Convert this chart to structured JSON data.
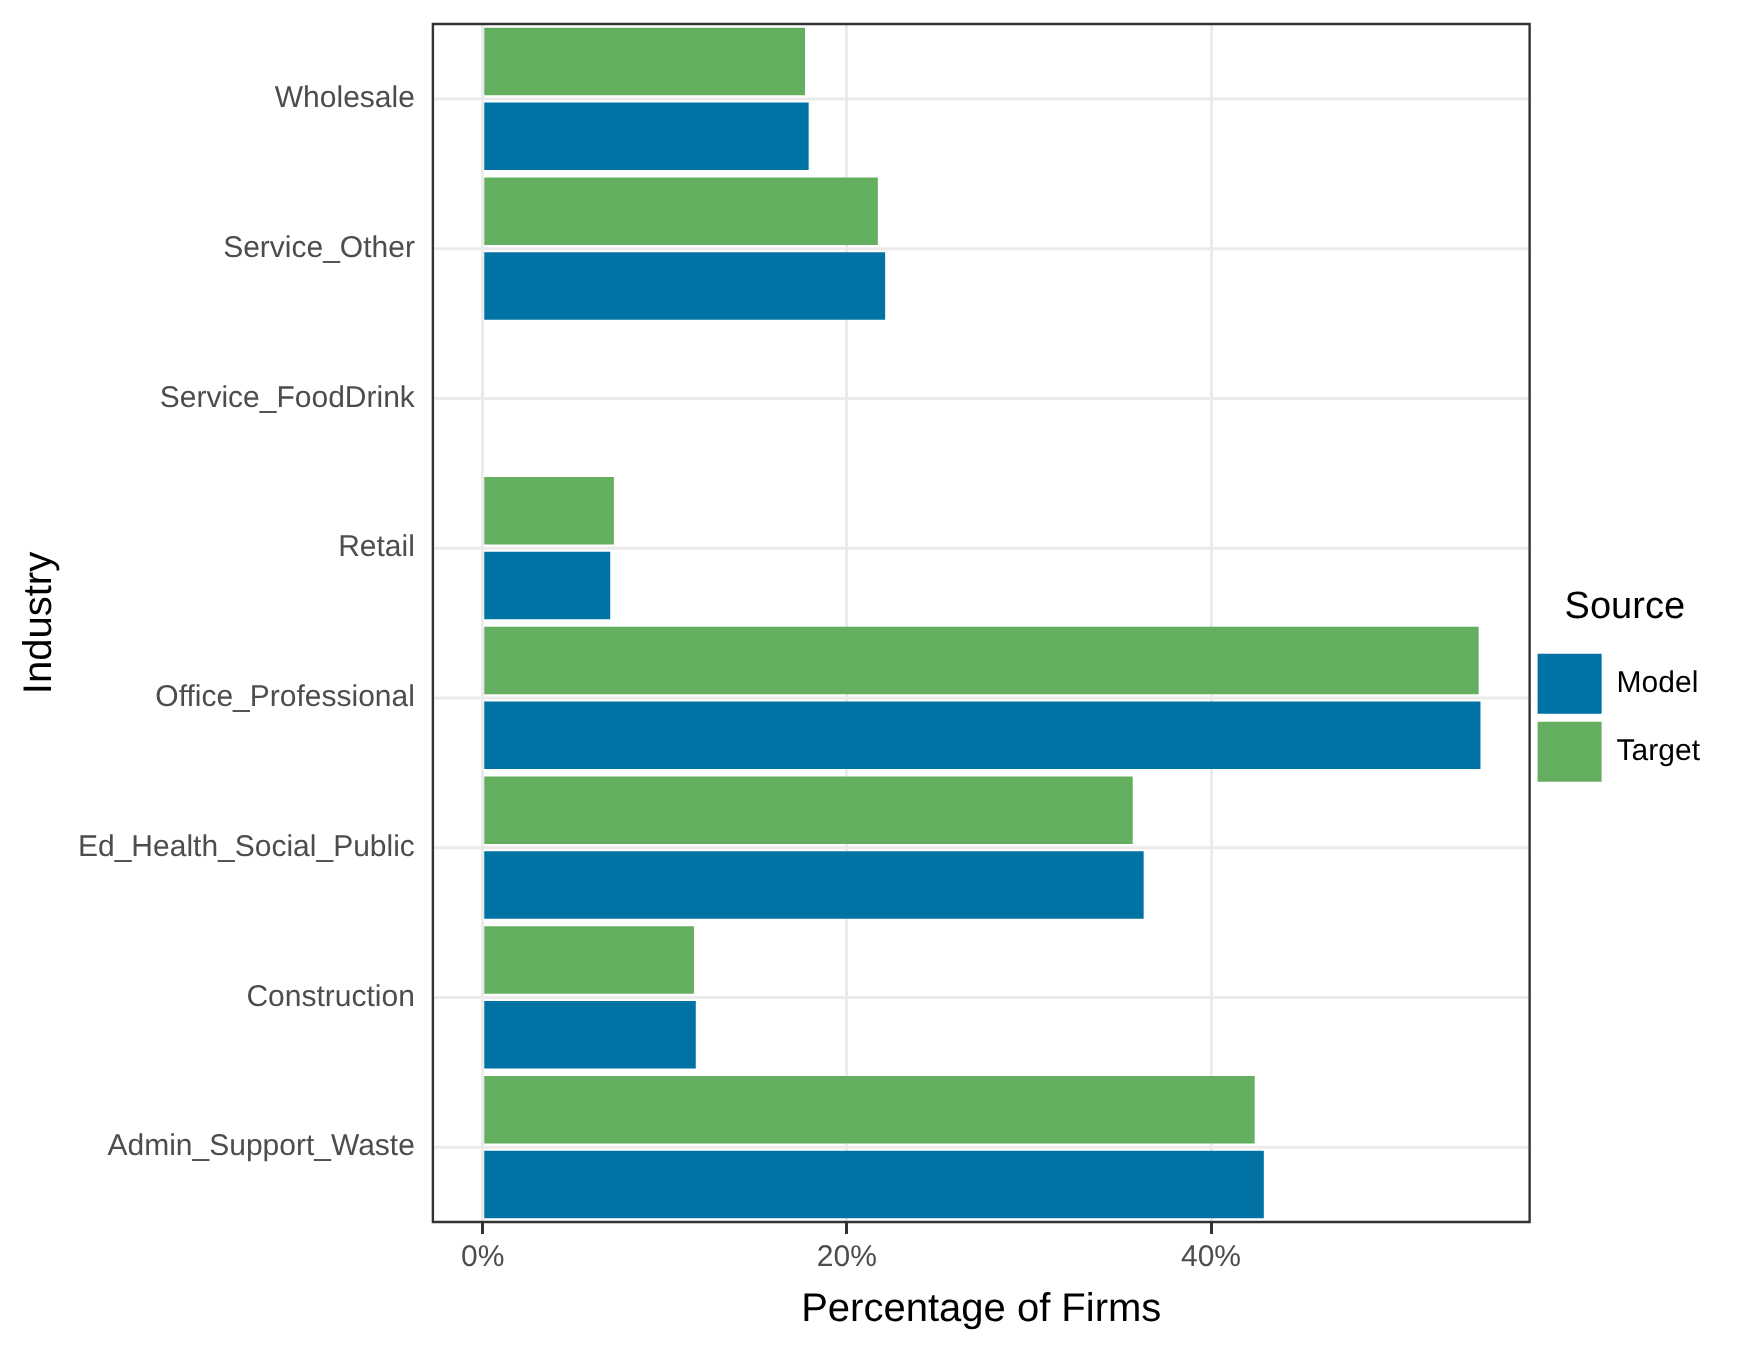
{
  "chart_data": {
    "type": "bar",
    "orientation": "horizontal",
    "xlabel": "Percentage of Firms",
    "ylabel": "Industry",
    "legend_title": "Source",
    "categories": [
      "Wholesale",
      "Service_Other",
      "Service_FoodDrink",
      "Retail",
      "Office_Professional",
      "Ed_Health_Social_Public",
      "Construction",
      "Admin_Support_Waste"
    ],
    "series": [
      {
        "name": "Model",
        "color": "#0072a3",
        "values": [
          17.9,
          22.1,
          0,
          7.0,
          54.8,
          36.3,
          11.7,
          42.9
        ]
      },
      {
        "name": "Target",
        "color": "#64af5f",
        "values": [
          17.7,
          21.7,
          0,
          7.2,
          54.7,
          35.7,
          11.6,
          42.4
        ]
      }
    ],
    "xlim": [
      -2.74,
      57.5
    ],
    "xticks": [
      {
        "value": 0,
        "label": "0%"
      },
      {
        "value": 20,
        "label": "20%"
      },
      {
        "value": 40,
        "label": "40%"
      }
    ],
    "grid": true,
    "legend": "right"
  }
}
